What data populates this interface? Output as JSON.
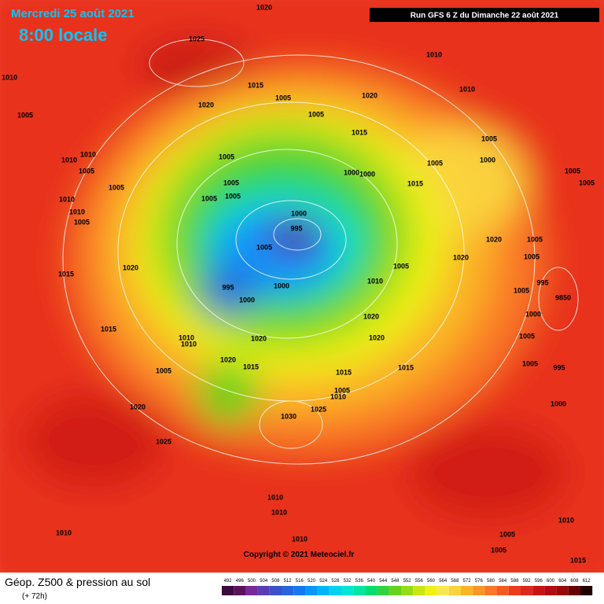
{
  "header": {
    "date": "Mercredi 25 août 2021",
    "time": "8:00 locale",
    "run": "Run GFS 6 Z du Dimanche 22 août 2021"
  },
  "copyright": "Copyright © 2021 Meteociel.fr",
  "footer": {
    "title": "Géop. Z500 & pression au sol",
    "lead": "(+ 72h)"
  },
  "legend": {
    "levels": [
      492,
      496,
      500,
      504,
      508,
      512,
      516,
      520,
      524,
      528,
      532,
      536,
      540,
      544,
      548,
      552,
      556,
      560,
      564,
      568,
      572,
      576,
      580,
      584,
      588,
      592,
      596,
      600,
      604,
      608,
      612
    ],
    "colors": [
      "#3c0a3c",
      "#5a145a",
      "#78289a",
      "#5a3cb4",
      "#3c50c8",
      "#2864dc",
      "#1478f0",
      "#0a96fa",
      "#00b4fa",
      "#00d2f0",
      "#00e6d2",
      "#00e6a0",
      "#00dc6e",
      "#32d23c",
      "#64d21e",
      "#96dc14",
      "#c8e614",
      "#f0f014",
      "#fae650",
      "#fad23c",
      "#fab428",
      "#fa9628",
      "#fa7828",
      "#f55a1e",
      "#eb3c1e",
      "#dc281e",
      "#c81414",
      "#b40a14",
      "#960a0a",
      "#640505",
      "#1e0000"
    ]
  },
  "pressure_labels": [
    1020,
    1025,
    1010,
    1010,
    1015,
    1005,
    1020,
    1010,
    1020,
    1005,
    1005,
    1015,
    1005,
    1010,
    1005,
    1010,
    1000,
    1005,
    1005,
    1005,
    1000,
    1000,
    1005,
    1015,
    1005,
    1005,
    1005,
    1005,
    1010,
    1000,
    1010,
    1005,
    995,
    1020,
    1005,
    1005,
    1020,
    1005,
    1020,
    1005,
    1015,
    1010,
    995,
    1000,
    995,
    1005,
    9850,
    1000,
    1000,
    1020,
    1015,
    1010,
    1020,
    1020,
    1005,
    1010,
    1020,
    1015,
    1015,
    1005,
    995,
    1015,
    1005,
    1005,
    1010,
    1000,
    1020,
    1025,
    1030,
    1025,
    1010,
    1010,
    1010,
    1010,
    1005,
    1010,
    1005,
    1015
  ]
}
